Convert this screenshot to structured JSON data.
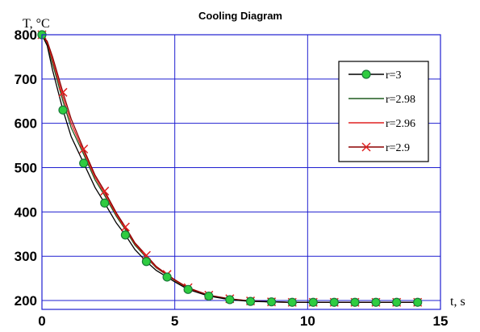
{
  "chart_data": {
    "type": "line",
    "title": "Cooling Diagram",
    "ylabel": "T, °C",
    "xlabel": "t, s",
    "xlim": [
      0,
      15
    ],
    "ylim": [
      180,
      800
    ],
    "x_ticks": [
      0,
      5,
      10,
      15
    ],
    "y_ticks": [
      200,
      300,
      400,
      500,
      600,
      700,
      800
    ],
    "grid": true,
    "legend_position": "top-right",
    "x": [
      0.0,
      0.2,
      0.4,
      0.79,
      1.1,
      1.57,
      2.0,
      2.36,
      2.8,
      3.14,
      3.5,
      3.93,
      4.3,
      4.71,
      5.0,
      5.5,
      6.28,
      7.07,
      7.85,
      8.64,
      9.42,
      10.21,
      11.0,
      11.78,
      12.57,
      13.35,
      14.14,
      14.3
    ],
    "series": [
      {
        "name": "r=3",
        "marker": "circle",
        "color": "#000000",
        "marker_fill": "#2ecc40",
        "marker_stroke": "#1a7a3a",
        "values": [
          800,
          775,
          720,
          630,
          570,
          510,
          455,
          420,
          375,
          348,
          315,
          288,
          268,
          253,
          242,
          225,
          210,
          202,
          198,
          197,
          196,
          196,
          196,
          196,
          196,
          196,
          196,
          196
        ]
      },
      {
        "name": "r=2.98",
        "marker": "none",
        "color": "#1f5c1f",
        "values": [
          800,
          780,
          735,
          650,
          590,
          530,
          472,
          437,
          390,
          360,
          325,
          297,
          274,
          257,
          245,
          227,
          211,
          203,
          199,
          197,
          196,
          196,
          196,
          196,
          196,
          196,
          196,
          196
        ]
      },
      {
        "name": "r=2.96",
        "marker": "none",
        "color": "#e02020",
        "values": [
          800,
          782,
          742,
          660,
          600,
          536,
          478,
          442,
          394,
          363,
          328,
          299,
          275,
          258,
          246,
          228,
          211,
          203,
          199,
          197,
          196,
          196,
          196,
          196,
          196,
          196,
          196,
          196
        ]
      },
      {
        "name": "r=2.9",
        "marker": "cross",
        "color": "#8b0000",
        "marker_color": "#e02020",
        "values": [
          800,
          785,
          750,
          670,
          610,
          542,
          483,
          447,
          398,
          366,
          330,
          302,
          277,
          259,
          247,
          229,
          212,
          204,
          199,
          197,
          196,
          196,
          196,
          196,
          196,
          196,
          196,
          196
        ]
      }
    ]
  }
}
